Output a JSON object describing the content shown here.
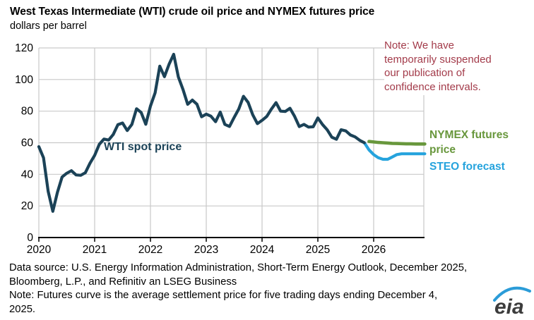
{
  "title": "West Texas Intermediate (WTI) crude oil price and NYMEX futures price",
  "subtitle": "dollars per barrel",
  "annotations": {
    "wti_series_label": "WTI spot price",
    "note_overlay": "Note: We have temporarily suspended our publication of confidence intervals.",
    "legend_nymex": "NYMEX futures price",
    "legend_steo": "STEO forecast"
  },
  "footer": {
    "lines": [
      "Data source: U.S. Energy Information Administration,  Short-Term Energy Outlook, December 2025,",
      "Bloomberg, L.P., and Refinitiv an LSEG Business",
      "Note: Futures curve is the average settlement price for five trading days ending December 4,",
      "2025."
    ]
  },
  "logo": {
    "text": "eia",
    "swoosh_color": "#2b9cd8",
    "text_color": "#3c3c3c"
  },
  "colors": {
    "wti_line": "#1b4257",
    "steo_line": "#25a3dd",
    "nymex_line": "#68973c",
    "note_red": "#a33b4a",
    "gridline": "#c9c9c9",
    "axis": "#000000"
  },
  "chart_data": {
    "type": "line",
    "title": "West Texas Intermediate (WTI) crude oil price and NYMEX futures price",
    "xlabel": "",
    "ylabel": "dollars per barrel",
    "xlim": [
      2020,
      2026.92
    ],
    "ylim": [
      0,
      120
    ],
    "yticks": [
      0,
      20,
      40,
      60,
      80,
      100,
      120
    ],
    "xticks": [
      2020,
      2021,
      2022,
      2023,
      2024,
      2025,
      2026
    ],
    "grid": true,
    "legend_position": "right-outside",
    "series": [
      {
        "name": "NYMEX futures price",
        "color": "#68973c",
        "width": 4.6,
        "start_year": 2025,
        "start_month": 12,
        "cadence": "monthly",
        "values": [
          60.8,
          60.5,
          60.2,
          60.0,
          59.8,
          59.6,
          59.5,
          59.4,
          59.3,
          59.3,
          59.2,
          59.2,
          59.2
        ]
      },
      {
        "name": "STEO forecast",
        "color": "#25a3dd",
        "width": 4.2,
        "start_year": 2025,
        "start_month": 11,
        "cadence": "monthly",
        "values": [
          60.0,
          55.5,
          52.5,
          50.5,
          49.5,
          49.5,
          51.0,
          52.5,
          53.0,
          53.0,
          53.0,
          53.0,
          53.0,
          53.0
        ]
      },
      {
        "name": "WTI spot price",
        "color": "#1b4257",
        "width": 4.2,
        "start_year": 2020,
        "start_month": 1,
        "cadence": "monthly",
        "values": [
          57.5,
          50.5,
          29.2,
          16.6,
          28.6,
          38.3,
          40.7,
          42.3,
          39.6,
          39.4,
          41.0,
          47.0,
          52.0,
          59.0,
          62.3,
          61.7,
          65.2,
          71.4,
          72.5,
          67.7,
          71.6,
          81.5,
          79.2,
          71.7,
          83.2,
          91.6,
          108.5,
          101.8,
          109.6,
          116.0,
          101.6,
          93.7,
          84.3,
          87.0,
          84.4,
          76.4,
          78.1,
          76.8,
          73.3,
          79.4,
          71.6,
          70.3,
          76.0,
          81.4,
          89.4,
          85.5,
          77.7,
          72.1,
          74.2,
          76.6,
          81.3,
          85.4,
          80.0,
          79.8,
          81.8,
          76.7,
          70.2,
          71.6,
          69.9,
          70.1,
          75.7,
          71.5,
          68.2,
          63.5,
          62.2,
          68.2,
          67.5,
          64.9,
          63.7,
          61.5,
          60.0
        ]
      }
    ]
  }
}
